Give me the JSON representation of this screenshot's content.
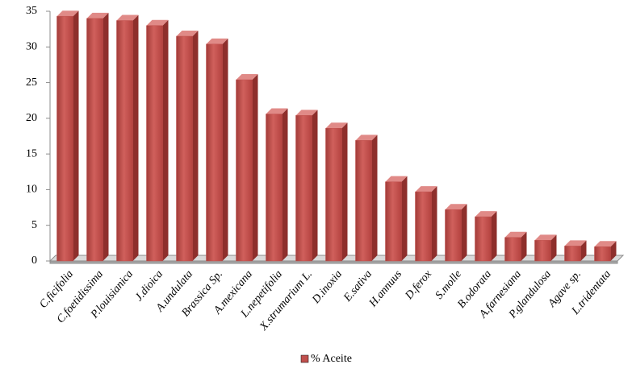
{
  "chart_data": {
    "type": "bar3d",
    "categories": [
      "C.ficifolia",
      "C.foetidissima",
      "P.louisianica",
      "J.dioica",
      "A.undulata",
      "Brassica Sp.",
      "A.mexicana",
      "L.nepetifolia",
      "X.strumarium L.",
      "D.inoxia",
      "E.sativa",
      "H.annuus",
      "D.ferox",
      "S.molle",
      "B.odorata",
      "A.farnesiana",
      "P.glandulosa",
      "Agave sp.",
      "L.tridentata"
    ],
    "series": [
      {
        "name": "% Aceite",
        "color": "#c0504d",
        "values": [
          34.3,
          34.0,
          33.7,
          33.0,
          31.5,
          30.4,
          25.4,
          20.6,
          20.4,
          18.6,
          16.9,
          11.1,
          9.7,
          7.2,
          6.2,
          3.3,
          2.9,
          2.1,
          2.0
        ]
      }
    ],
    "ylim": [
      0,
      35
    ],
    "yticks": [
      0,
      5,
      10,
      15,
      20,
      25,
      30,
      35
    ],
    "legend": "bottom"
  }
}
